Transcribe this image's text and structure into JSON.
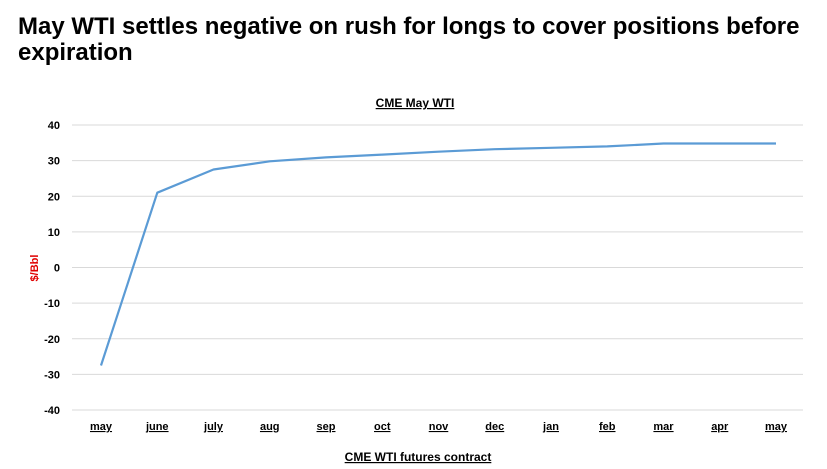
{
  "page": {
    "headline": "May WTI settles negative on rush for longs to cover positions before expiration"
  },
  "chart_data": {
    "type": "line",
    "title": "CME May WTI",
    "xlabel": "CME WTI futures contract",
    "ylabel": "$/Bbl",
    "categories": [
      "may",
      "june",
      "july",
      "aug",
      "sep",
      "oct",
      "nov",
      "dec",
      "jan",
      "feb",
      "mar",
      "apr",
      "may"
    ],
    "series": [
      {
        "values": [
          -27.5,
          21,
          27.5,
          29.8,
          30.9,
          31.7,
          32.5,
          33.2,
          33.6,
          34.0,
          34.8,
          34.8,
          34.8
        ]
      }
    ],
    "ylim": [
      -40,
      40
    ],
    "yticks": [
      40,
      30,
      20,
      10,
      0,
      -10,
      -20,
      -30,
      -40
    ],
    "grid": true,
    "legend": "none",
    "colors": {
      "line": "#5B9BD5",
      "grid": "#D9D9D9",
      "ylabel": "#E00000"
    }
  }
}
